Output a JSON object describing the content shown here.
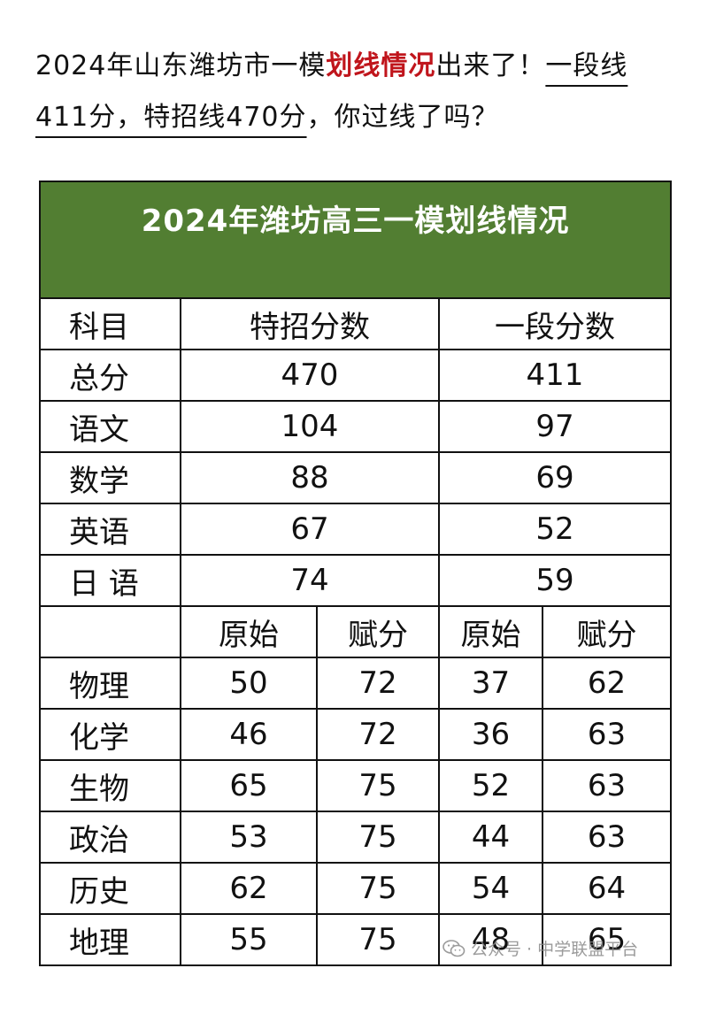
{
  "intro": {
    "part1": "2024年山东潍坊市一模",
    "highlight": "划线情况",
    "part2": "出来了！",
    "underlined": "一段线411分，特招线470分",
    "part3": "，你过线了吗？"
  },
  "table": {
    "title": "2024年潍坊高三一模划线情况",
    "header": {
      "subject": "科目",
      "special": "特招分数",
      "tier1": "一段分数"
    },
    "main_rows": [
      {
        "subject": "总分",
        "special": "470",
        "tier1": "411"
      },
      {
        "subject": "语文",
        "special": "104",
        "tier1": "97"
      },
      {
        "subject": "数学",
        "special": "88",
        "tier1": "69"
      },
      {
        "subject": "英语",
        "special": "67",
        "tier1": "52"
      },
      {
        "subject": "日 语",
        "special": "74",
        "tier1": "59"
      }
    ],
    "sub_header": {
      "raw1": "原始",
      "assigned1": "赋分",
      "raw2": "原始",
      "assigned2": "赋分"
    },
    "elective_rows": [
      {
        "subject": "物理",
        "special_raw": "50",
        "special_assigned": "72",
        "tier1_raw": "37",
        "tier1_assigned": "62"
      },
      {
        "subject": "化学",
        "special_raw": "46",
        "special_assigned": "72",
        "tier1_raw": "36",
        "tier1_assigned": "63"
      },
      {
        "subject": "生物",
        "special_raw": "65",
        "special_assigned": "75",
        "tier1_raw": "52",
        "tier1_assigned": "63"
      },
      {
        "subject": "政治",
        "special_raw": "53",
        "special_assigned": "75",
        "tier1_raw": "44",
        "tier1_assigned": "63"
      },
      {
        "subject": "历史",
        "special_raw": "62",
        "special_assigned": "75",
        "tier1_raw": "54",
        "tier1_assigned": "64"
      },
      {
        "subject": "地理",
        "special_raw": "55",
        "special_assigned": "75",
        "tier1_raw": "48",
        "tier1_assigned": "65"
      }
    ]
  },
  "watermark": {
    "text": "公众号 · 中学联盟平台",
    "icon": "wechat-icon"
  },
  "colors": {
    "title_bg": "#527e32",
    "highlight": "#c0151c"
  }
}
